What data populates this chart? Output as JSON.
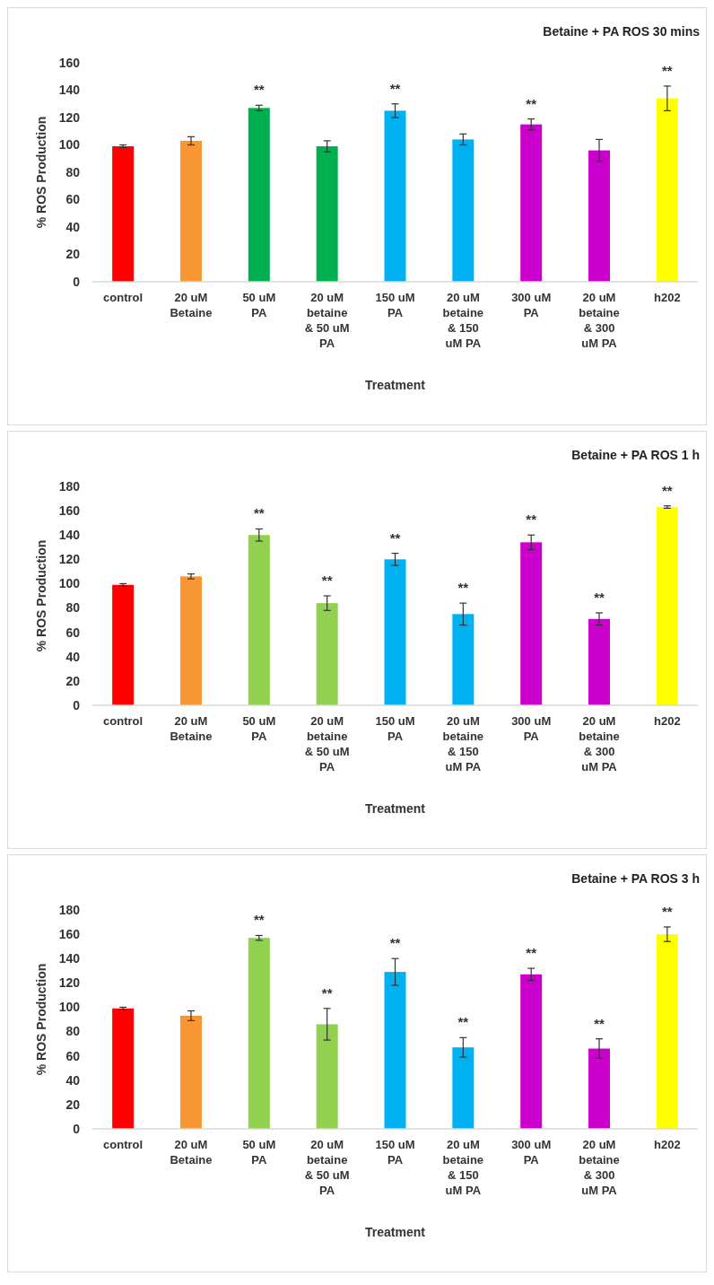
{
  "chart_data": [
    {
      "type": "bar",
      "title": "Betaine + PA ROS 30 mins",
      "xlabel": "Treatment",
      "ylabel": "% ROS Production",
      "categories": [
        "control",
        "20 uM Betaine",
        "50 uM PA",
        "20 uM betaine & 50 uM PA",
        "150 uM PA",
        "20 uM betaine & 150 uM PA",
        "300 uM PA",
        "20 uM betaine & 300 uM PA",
        "h202"
      ],
      "values": [
        99,
        103,
        127,
        99,
        125,
        104,
        115,
        96,
        134
      ],
      "errors": [
        1,
        3,
        2,
        4,
        5,
        4,
        4,
        8,
        9
      ],
      "colors": [
        "#ff0000",
        "#f79632",
        "#00b050",
        "#00b050",
        "#00b0f0",
        "#00b0f0",
        "#cc00cc",
        "#cc00cc",
        "#ffff00"
      ],
      "ylim": [
        0,
        160
      ],
      "yticks": [
        0,
        20,
        40,
        60,
        80,
        100,
        120,
        140,
        160
      ],
      "grid": false,
      "annotations": [
        {
          "text": "**",
          "x": "50 uM PA",
          "y": 127
        },
        {
          "text": "**",
          "x": "150 uM PA",
          "y": 125
        },
        {
          "text": "**",
          "x": "300 uM PA",
          "y": 115
        },
        {
          "text": "**",
          "x": "h202",
          "y": 134
        }
      ]
    },
    {
      "type": "bar",
      "title": "Betaine + PA ROS 1 h",
      "xlabel": "Treatment",
      "ylabel": "% ROS Production",
      "categories": [
        "control",
        "20 uM Betaine",
        "50 uM PA",
        "20 uM betaine & 50 uM PA",
        "150 uM PA",
        "20 uM betaine & 150 uM PA",
        "300 uM PA",
        "20 uM betaine & 300 uM PA",
        "h202"
      ],
      "values": [
        99,
        106,
        140,
        84,
        120,
        75,
        134,
        71,
        163
      ],
      "errors": [
        1,
        2,
        5,
        6,
        5,
        9,
        6,
        5,
        1
      ],
      "colors": [
        "#ff0000",
        "#f79632",
        "#92d050",
        "#92d050",
        "#00b0f0",
        "#00b0f0",
        "#cc00cc",
        "#cc00cc",
        "#ffff00"
      ],
      "ylim": [
        0,
        180
      ],
      "yticks": [
        0,
        20,
        40,
        60,
        80,
        100,
        120,
        140,
        160,
        180
      ],
      "grid": false,
      "annotations": [
        {
          "text": "**",
          "x": "50 uM PA",
          "y": 140
        },
        {
          "text": "**",
          "x": "20 uM betaine & 50 uM PA",
          "y": 84
        },
        {
          "text": "**",
          "x": "150 uM PA",
          "y": 120
        },
        {
          "text": "**",
          "x": "20 uM betaine & 150 uM PA",
          "y": 75
        },
        {
          "text": "**",
          "x": "300 uM PA",
          "y": 134
        },
        {
          "text": "**",
          "x": "20 uM betaine & 300 uM PA",
          "y": 71
        },
        {
          "text": "**",
          "x": "h202",
          "y": 163
        }
      ]
    },
    {
      "type": "bar",
      "title": "Betaine + PA ROS 3 h",
      "xlabel": "Treatment",
      "ylabel": "% ROS Production",
      "categories": [
        "control",
        "20 uM Betaine",
        "50 uM PA",
        "20 uM betaine & 50 uM PA",
        "150 uM PA",
        "20 uM betaine & 150 uM PA",
        "300 uM PA",
        "20 uM betaine & 300 uM PA",
        "h202"
      ],
      "values": [
        99,
        93,
        157,
        86,
        129,
        67,
        127,
        66,
        160
      ],
      "errors": [
        1,
        4,
        2,
        13,
        11,
        8,
        5,
        8,
        6
      ],
      "colors": [
        "#ff0000",
        "#f79632",
        "#92d050",
        "#92d050",
        "#00b0f0",
        "#00b0f0",
        "#cc00cc",
        "#cc00cc",
        "#ffff00"
      ],
      "ylim": [
        0,
        180
      ],
      "yticks": [
        0,
        20,
        40,
        60,
        80,
        100,
        120,
        140,
        160,
        180
      ],
      "grid": false,
      "annotations": [
        {
          "text": "**",
          "x": "50 uM PA",
          "y": 157
        },
        {
          "text": "**",
          "x": "20 uM betaine & 50 uM PA",
          "y": 86
        },
        {
          "text": "**",
          "x": "150 uM PA",
          "y": 129
        },
        {
          "text": "**",
          "x": "20 uM betaine & 150 uM PA",
          "y": 67
        },
        {
          "text": "**",
          "x": "300 uM PA",
          "y": 127
        },
        {
          "text": "**",
          "x": "20 uM betaine & 300 uM PA",
          "y": 66
        },
        {
          "text": "**",
          "x": "h202",
          "y": 160
        }
      ]
    }
  ]
}
